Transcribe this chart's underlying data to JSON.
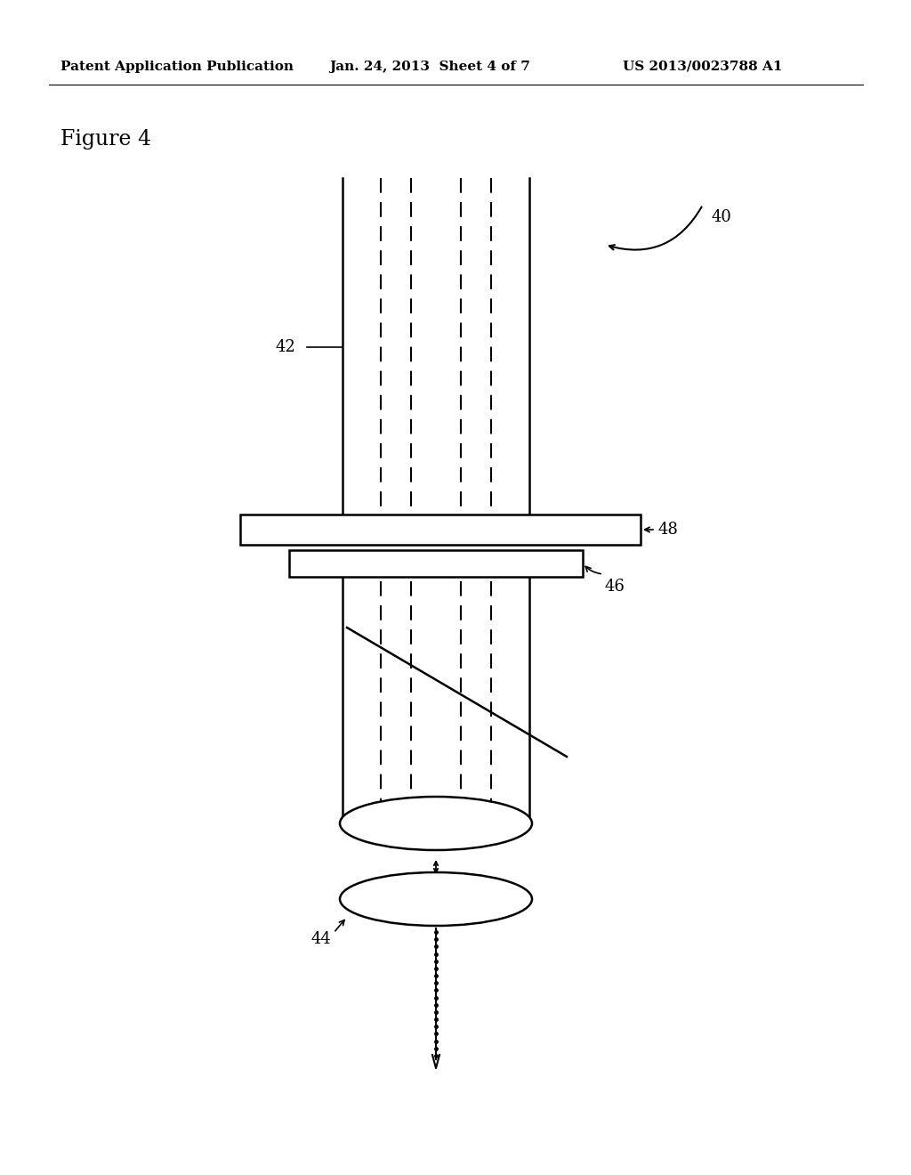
{
  "bg_color": "#ffffff",
  "line_color": "#000000",
  "header_left": "Patent Application Publication",
  "header_mid": "Jan. 24, 2013  Sheet 4 of 7",
  "header_right": "US 2013/0023788 A1",
  "figure_label": "Figure 4",
  "label_40": "40",
  "label_42": "42",
  "label_44": "44",
  "label_46": "46",
  "label_48": "48"
}
